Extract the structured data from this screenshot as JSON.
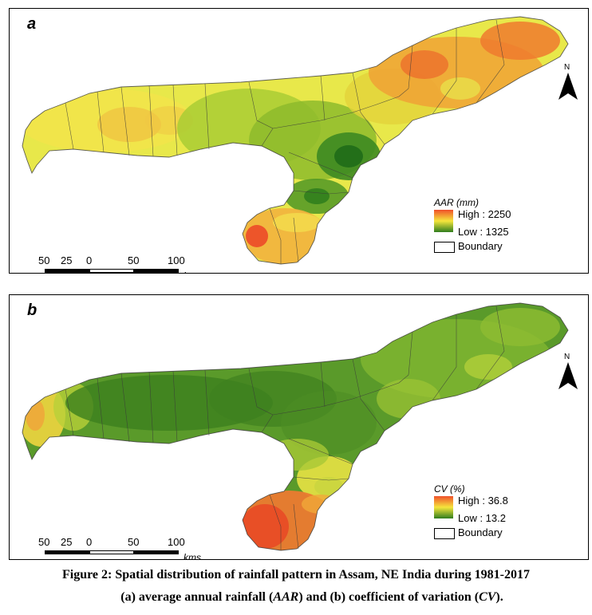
{
  "figure": {
    "caption_line1": "Figure 2: Spatial distribution of rainfall pattern in Assam, NE India during 1981-2017",
    "caption_line2_parts": {
      "p1": "(a) average annual rainfall (",
      "aar": "AAR",
      "p2": ") and (b) coefficient of variation (",
      "cv": "CV",
      "p3": ")."
    }
  },
  "panels": [
    {
      "letter": "a",
      "legend": {
        "title": "AAR (mm)",
        "high": "High : 2250",
        "low": "Low : 1325",
        "boundary": "Boundary",
        "high_color": "#f0502a",
        "mid_color": "#f5e63c",
        "low_color": "#2f7d1e"
      },
      "scale": {
        "ticks": [
          "50",
          "25",
          "0",
          "50",
          "100"
        ],
        "units": "kms"
      },
      "north": "N"
    },
    {
      "letter": "b",
      "legend": {
        "title": "CV (%)",
        "high": "High : 36.8",
        "low": "Low : 13.2",
        "boundary": "Boundary",
        "high_color": "#f0502a",
        "mid_color": "#f5e63c",
        "low_color": "#2f7d1e"
      },
      "scale": {
        "ticks": [
          "50",
          "25",
          "0",
          "50",
          "100"
        ],
        "units": "kms"
      },
      "north": "N"
    }
  ]
}
